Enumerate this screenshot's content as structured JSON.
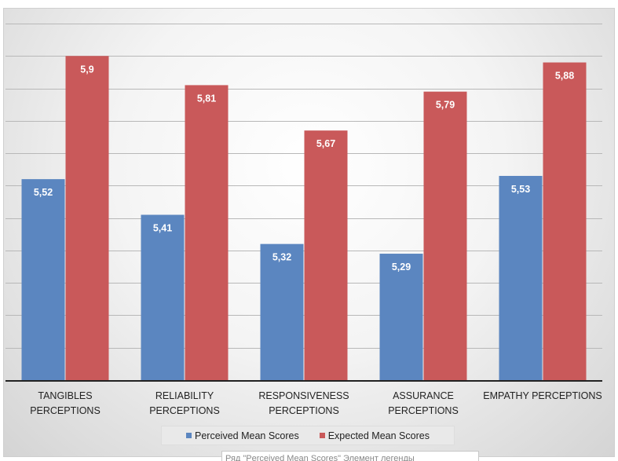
{
  "chart_data": {
    "type": "bar",
    "categories": [
      [
        "TANGIBLES",
        "PERCEPTIONS"
      ],
      [
        "RELIABILITY",
        "PERCEPTIONS"
      ],
      [
        "RESPONSIVENESS",
        "PERCEPTIONS"
      ],
      [
        "ASSURANCE",
        "PERCEPTIONS"
      ],
      [
        "EMPATHY PERCEPTIONS"
      ]
    ],
    "series": [
      {
        "name": "Perceived Mean Scores",
        "values": [
          5.52,
          5.41,
          5.32,
          5.29,
          5.53
        ],
        "labels": [
          "5,52",
          "5,41",
          "5,32",
          "5,29",
          "5,53"
        ],
        "color": "#5b86c0"
      },
      {
        "name": "Expected Mean Scores",
        "values": [
          5.9,
          5.81,
          5.67,
          5.79,
          5.88
        ],
        "labels": [
          "5,9",
          "5,81",
          "5,67",
          "5,79",
          "5,88"
        ],
        "color": "#c9595a"
      }
    ],
    "ylim": [
      4.9,
      6.0
    ],
    "y_grid_step": 0.1,
    "grid": true,
    "legend_position": "bottom",
    "title": "",
    "xlabel": "",
    "ylabel": ""
  },
  "tooltip": {
    "text": "Ряд \"Perceived Mean Scores\" Элемент легенды"
  }
}
